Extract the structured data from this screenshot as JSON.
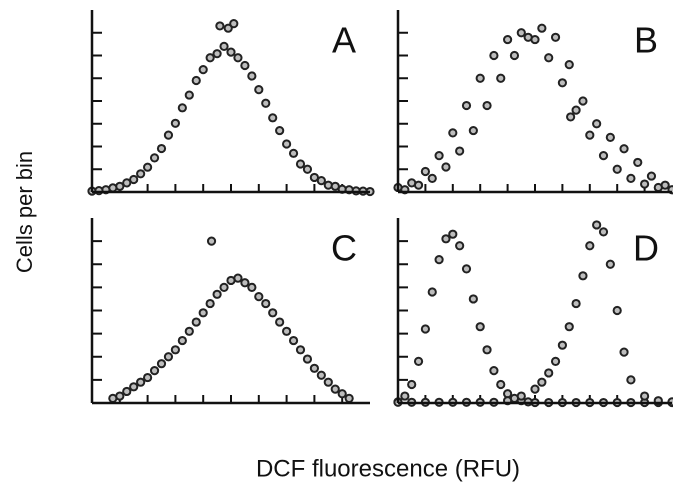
{
  "xlabel": "DCF fluorescence (RFU)",
  "ylabel": "Cells per bin",
  "chart_data": [
    {
      "type": "scatter",
      "label": "A",
      "xlim": [
        0,
        10
      ],
      "ylim": [
        0,
        8
      ],
      "xticks": [
        1,
        2,
        3,
        4,
        5,
        6,
        7,
        8,
        9
      ],
      "yticks": [
        1,
        2,
        3,
        4,
        5,
        6,
        7
      ],
      "series": [
        {
          "color": "#222222",
          "x": [
            0,
            0.5,
            1,
            1.5,
            2,
            2.5,
            3,
            3.5,
            4,
            4.5,
            5,
            5.5,
            6,
            6.5,
            7,
            7.5,
            8,
            8.5,
            9,
            9.5,
            10
          ],
          "values": [
            0.04,
            0.1,
            0.25,
            0.55,
            1.09,
            1.91,
            3.02,
            4.26,
            5.38,
            6.08,
            6.15,
            5.56,
            4.5,
            3.26,
            2.11,
            1.23,
            0.64,
            0.3,
            0.12,
            0.05,
            0.02
          ]
        },
        {
          "color": "#222222",
          "x": [
            0.25,
            0.75,
            1.25,
            1.75,
            2.25,
            2.75,
            3.25,
            3.75,
            4.25,
            4.75,
            5.25,
            5.75,
            6.25,
            6.75,
            7.25,
            7.75,
            8.25,
            8.75,
            9.25,
            9.75,
            4.6,
            4.9,
            5.1
          ],
          "values": [
            0.06,
            0.18,
            0.4,
            0.8,
            1.5,
            2.5,
            3.7,
            4.9,
            5.9,
            6.4,
            5.9,
            5.1,
            3.9,
            2.7,
            1.7,
            1.0,
            0.5,
            0.25,
            0.1,
            0.04,
            7.3,
            7.2,
            7.4
          ]
        }
      ]
    },
    {
      "type": "scatter",
      "label": "B",
      "xlim": [
        0,
        10
      ],
      "ylim": [
        0,
        8
      ],
      "xticks": [
        1,
        2,
        3,
        4,
        5,
        6,
        7,
        8,
        9
      ],
      "yticks": [
        1,
        2,
        3,
        4,
        5,
        6,
        7
      ],
      "series": [
        {
          "color": "#222222",
          "x": [
            0,
            0.5,
            1,
            1.5,
            2,
            2.5,
            3,
            3.5,
            4,
            4.5,
            5,
            5.5,
            6,
            6.5,
            7,
            7.5,
            8,
            8.5,
            9,
            9.5,
            10
          ],
          "values": [
            0.2,
            0.4,
            0.9,
            1.6,
            2.6,
            3.8,
            5.0,
            6.0,
            6.7,
            7.0,
            6.7,
            5.9,
            4.8,
            3.6,
            2.5,
            1.6,
            1.0,
            0.6,
            0.35,
            0.2,
            0.1
          ]
        },
        {
          "color": "#222222",
          "x": [
            0.25,
            0.75,
            1.25,
            1.75,
            2.25,
            2.75,
            3.25,
            3.75,
            4.25,
            4.75,
            5.25,
            5.75,
            6.25,
            6.75,
            7.25,
            7.75,
            8.25,
            8.75,
            9.25,
            9.75,
            6.3
          ],
          "values": [
            0.1,
            0.3,
            0.6,
            1.1,
            1.8,
            2.7,
            3.8,
            5.0,
            6.0,
            6.8,
            7.2,
            6.8,
            5.6,
            4.0,
            3.0,
            2.4,
            1.9,
            1.3,
            0.7,
            0.3,
            3.3
          ]
        }
      ]
    },
    {
      "type": "scatter",
      "label": "C",
      "xlim": [
        0,
        10
      ],
      "ylim": [
        0,
        8
      ],
      "xticks": [
        1,
        2,
        3,
        4,
        5,
        6,
        7,
        8,
        9
      ],
      "yticks": [
        1,
        2,
        3,
        4,
        5,
        6,
        7
      ],
      "series": [
        {
          "color": "#222222",
          "x": [
            0.75,
            1.25,
            1.75,
            2.25,
            2.75,
            3.25,
            3.75,
            4.25,
            4.75,
            5.25,
            5.75,
            6.25,
            6.75,
            7.25,
            7.75,
            8.25,
            8.75,
            9.25
          ],
          "values": [
            0.2,
            0.5,
            0.9,
            1.4,
            2.0,
            2.7,
            3.5,
            4.3,
            5.0,
            5.4,
            5.0,
            4.3,
            3.5,
            2.7,
            1.9,
            1.2,
            0.6,
            0.2
          ]
        },
        {
          "color": "#222222",
          "x": [
            1,
            1.5,
            2,
            2.5,
            3,
            3.5,
            4,
            4.5,
            5,
            5.5,
            6,
            6.5,
            7,
            7.5,
            8,
            8.5,
            9,
            4.3
          ],
          "values": [
            0.3,
            0.7,
            1.1,
            1.7,
            2.3,
            3.1,
            3.9,
            4.7,
            5.3,
            5.2,
            4.6,
            3.9,
            3.1,
            2.3,
            1.5,
            0.9,
            0.4,
            7.0
          ]
        }
      ]
    },
    {
      "type": "scatter",
      "label": "D",
      "xlim": [
        0,
        10
      ],
      "ylim": [
        0,
        8
      ],
      "xticks": [
        1,
        2,
        3,
        4,
        5,
        6,
        7,
        8,
        9
      ],
      "yticks": [
        1,
        2,
        3,
        4,
        5,
        6,
        7
      ],
      "series": [
        {
          "color": "#222222",
          "x": [
            0,
            0.25,
            0.5,
            0.75,
            1,
            1.25,
            1.5,
            1.75,
            2,
            2.25,
            2.5,
            2.75,
            3,
            3.25,
            3.5,
            3.75,
            4,
            4.25,
            4.5,
            4.75,
            5,
            5.5,
            6,
            6.5,
            7,
            7.5,
            8,
            8.5,
            9,
            9.5,
            10
          ],
          "values": [
            0.05,
            0.3,
            0.8,
            1.8,
            3.2,
            4.8,
            6.2,
            7.1,
            7.3,
            6.8,
            5.8,
            4.5,
            3.3,
            2.3,
            1.4,
            0.8,
            0.4,
            0.2,
            0.1,
            0.05,
            0.02,
            0.02,
            0.02,
            0.02,
            0.02,
            0.02,
            0.02,
            0.02,
            0.02,
            0.02,
            0.02
          ]
        },
        {
          "color": "#222222",
          "x": [
            0,
            0.5,
            1,
            1.5,
            2,
            2.5,
            3,
            3.5,
            4,
            4.5,
            5,
            5.25,
            5.5,
            5.75,
            6,
            6.25,
            6.5,
            6.75,
            7,
            7.25,
            7.5,
            7.75,
            8,
            8.25,
            8.5,
            9,
            9.5,
            10
          ],
          "values": [
            0.03,
            0.03,
            0.03,
            0.03,
            0.03,
            0.03,
            0.03,
            0.03,
            0.1,
            0.3,
            0.6,
            0.9,
            1.3,
            1.8,
            2.5,
            3.3,
            4.3,
            5.5,
            6.8,
            7.7,
            7.4,
            6.0,
            4.0,
            2.2,
            1.0,
            0.3,
            0.1,
            0.05
          ]
        }
      ]
    }
  ]
}
